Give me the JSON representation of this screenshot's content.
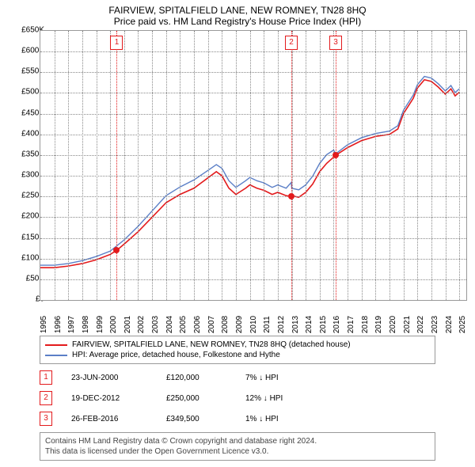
{
  "title": "FAIRVIEW, SPITALFIELD LANE, NEW ROMNEY, TN28 8HQ",
  "subtitle": "Price paid vs. HM Land Registry's House Price Index (HPI)",
  "chart": {
    "type": "line",
    "background_color": "#ffffff",
    "grid_color": "#888888",
    "border_color": "#999999",
    "x_start": 1995,
    "x_end": 2025.5,
    "x_ticks": [
      1995,
      1996,
      1997,
      1998,
      1999,
      2000,
      2001,
      2002,
      2003,
      2004,
      2005,
      2006,
      2007,
      2008,
      2009,
      2010,
      2011,
      2012,
      2013,
      2014,
      2015,
      2016,
      2017,
      2018,
      2019,
      2020,
      2021,
      2022,
      2023,
      2024,
      2025
    ],
    "ylim": [
      0,
      650000
    ],
    "y_ticks": [
      0,
      50000,
      100000,
      150000,
      200000,
      250000,
      300000,
      350000,
      400000,
      450000,
      500000,
      550000,
      600000,
      650000
    ],
    "y_tick_labels": [
      "£0",
      "£50K",
      "£100K",
      "£150K",
      "£200K",
      "£250K",
      "£300K",
      "£350K",
      "£400K",
      "£450K",
      "£500K",
      "£550K",
      "£600K",
      "£650K"
    ],
    "series": [
      {
        "name": "property",
        "color": "#e31a1c",
        "width": 1.6,
        "points": [
          [
            1995,
            78000
          ],
          [
            1996,
            78000
          ],
          [
            1997,
            82000
          ],
          [
            1998,
            88000
          ],
          [
            1999,
            97000
          ],
          [
            2000,
            110000
          ],
          [
            2000.47,
            120000
          ],
          [
            2001,
            135000
          ],
          [
            2002,
            165000
          ],
          [
            2003,
            200000
          ],
          [
            2004,
            235000
          ],
          [
            2005,
            255000
          ],
          [
            2006,
            270000
          ],
          [
            2007,
            295000
          ],
          [
            2007.6,
            310000
          ],
          [
            2008,
            300000
          ],
          [
            2008.5,
            270000
          ],
          [
            2009,
            255000
          ],
          [
            2009.7,
            270000
          ],
          [
            2010,
            278000
          ],
          [
            2010.5,
            270000
          ],
          [
            2011,
            265000
          ],
          [
            2011.6,
            255000
          ],
          [
            2012,
            260000
          ],
          [
            2012.6,
            252000
          ],
          [
            2012.97,
            250000
          ],
          [
            2013,
            252000
          ],
          [
            2013.5,
            248000
          ],
          [
            2014,
            260000
          ],
          [
            2014.5,
            280000
          ],
          [
            2015,
            310000
          ],
          [
            2015.5,
            330000
          ],
          [
            2016,
            345000
          ],
          [
            2016.15,
            349500
          ],
          [
            2017,
            368000
          ],
          [
            2018,
            385000
          ],
          [
            2019,
            395000
          ],
          [
            2020,
            400000
          ],
          [
            2020.6,
            413000
          ],
          [
            2021,
            450000
          ],
          [
            2021.7,
            487000
          ],
          [
            2022,
            512000
          ],
          [
            2022.5,
            532000
          ],
          [
            2023,
            528000
          ],
          [
            2023.5,
            514000
          ],
          [
            2024,
            497000
          ],
          [
            2024.4,
            510000
          ],
          [
            2024.7,
            493000
          ],
          [
            2025,
            502000
          ]
        ]
      },
      {
        "name": "hpi",
        "color": "#5b7fc7",
        "width": 1.4,
        "points": [
          [
            1995,
            84000
          ],
          [
            1996,
            84000
          ],
          [
            1997,
            88000
          ],
          [
            1998,
            95000
          ],
          [
            1999,
            105000
          ],
          [
            2000,
            118000
          ],
          [
            2001,
            145000
          ],
          [
            2002,
            178000
          ],
          [
            2003,
            215000
          ],
          [
            2004,
            252000
          ],
          [
            2005,
            273000
          ],
          [
            2006,
            290000
          ],
          [
            2007,
            313000
          ],
          [
            2007.6,
            327000
          ],
          [
            2008,
            318000
          ],
          [
            2008.5,
            288000
          ],
          [
            2009,
            272000
          ],
          [
            2009.7,
            288000
          ],
          [
            2010,
            296000
          ],
          [
            2010.5,
            288000
          ],
          [
            2011,
            283000
          ],
          [
            2011.6,
            272000
          ],
          [
            2012,
            278000
          ],
          [
            2012.6,
            270000
          ],
          [
            2012.97,
            284000
          ],
          [
            2013,
            270000
          ],
          [
            2013.5,
            266000
          ],
          [
            2014,
            278000
          ],
          [
            2014.5,
            299000
          ],
          [
            2015,
            330000
          ],
          [
            2015.5,
            351000
          ],
          [
            2016,
            362000
          ],
          [
            2016.15,
            353000
          ],
          [
            2017,
            375000
          ],
          [
            2018,
            392000
          ],
          [
            2019,
            402000
          ],
          [
            2020,
            408000
          ],
          [
            2020.6,
            421000
          ],
          [
            2021,
            458000
          ],
          [
            2021.7,
            495000
          ],
          [
            2022,
            520000
          ],
          [
            2022.5,
            540000
          ],
          [
            2023,
            536000
          ],
          [
            2023.5,
            522000
          ],
          [
            2024,
            505000
          ],
          [
            2024.4,
            518000
          ],
          [
            2024.7,
            501000
          ],
          [
            2025,
            510000
          ]
        ]
      }
    ],
    "markers": [
      {
        "n": "1",
        "x": 2000.47,
        "y": 120000,
        "color": "#e31a1c"
      },
      {
        "n": "2",
        "x": 2012.97,
        "y": 250000,
        "color": "#e31a1c"
      },
      {
        "n": "3",
        "x": 2016.15,
        "y": 349500,
        "color": "#e31a1c"
      }
    ]
  },
  "legend": {
    "items": [
      {
        "color": "#e31a1c",
        "label": "FAIRVIEW, SPITALFIELD LANE, NEW ROMNEY, TN28 8HQ (detached house)"
      },
      {
        "color": "#5b7fc7",
        "label": "HPI: Average price, detached house, Folkestone and Hythe"
      }
    ]
  },
  "events": [
    {
      "n": "1",
      "date": "23-JUN-2000",
      "price": "£120,000",
      "diff": "7% ↓ HPI"
    },
    {
      "n": "2",
      "date": "19-DEC-2012",
      "price": "£250,000",
      "diff": "12% ↓ HPI"
    },
    {
      "n": "3",
      "date": "26-FEB-2016",
      "price": "£349,500",
      "diff": "1% ↓ HPI"
    }
  ],
  "credit_line1": "Contains HM Land Registry data © Crown copyright and database right 2024.",
  "credit_line2": "This data is licensed under the Open Government Licence v3.0."
}
